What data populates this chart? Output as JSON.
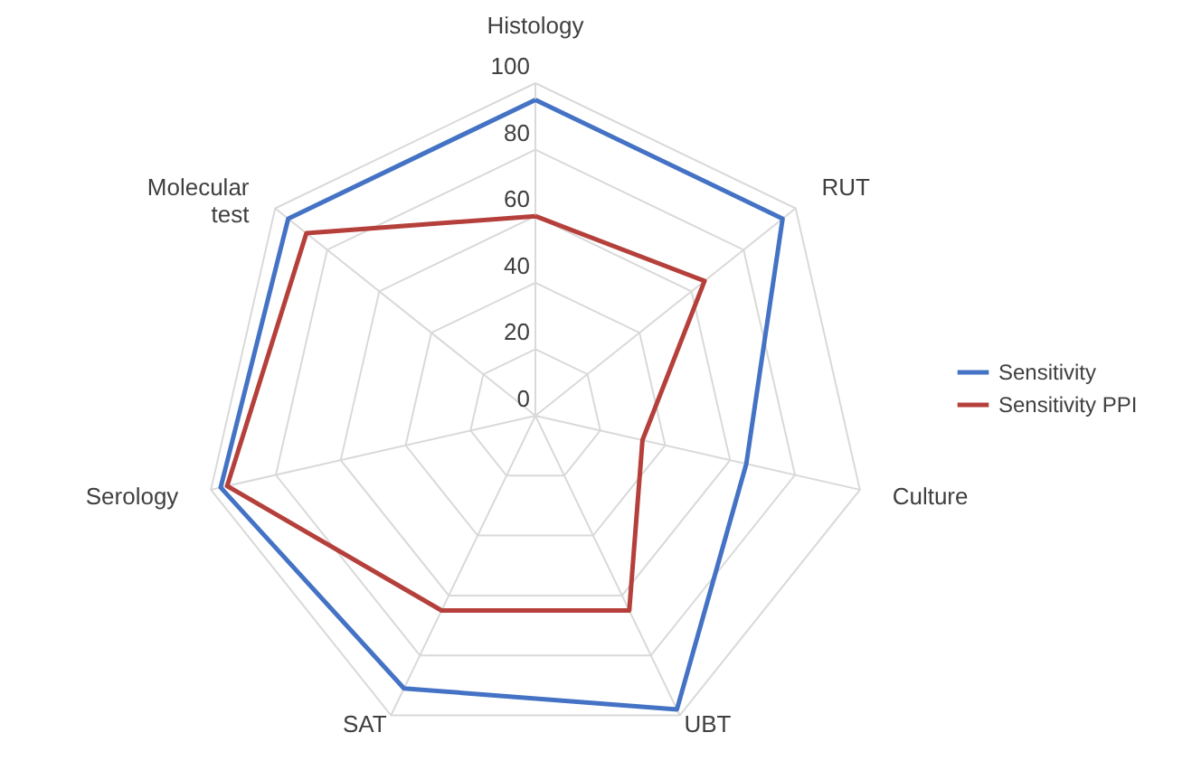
{
  "chart_data": {
    "type": "radar",
    "categories": [
      "Histology",
      "RUT",
      "Culture",
      "UBT",
      "SAT",
      "Serology",
      "Molecular test"
    ],
    "series": [
      {
        "name": "Sensitivity",
        "color": "#4472c4",
        "values": [
          95,
          95,
          65,
          98,
          91,
          97,
          95
        ]
      },
      {
        "name": "Sensitivity PPI",
        "color": "#b5403b",
        "values": [
          60,
          65,
          33,
          65,
          65,
          95,
          88
        ]
      }
    ],
    "ylim": [
      0,
      100
    ],
    "yticks": [
      0,
      20,
      40,
      60,
      80,
      100
    ],
    "grid": true,
    "legend": "right"
  }
}
